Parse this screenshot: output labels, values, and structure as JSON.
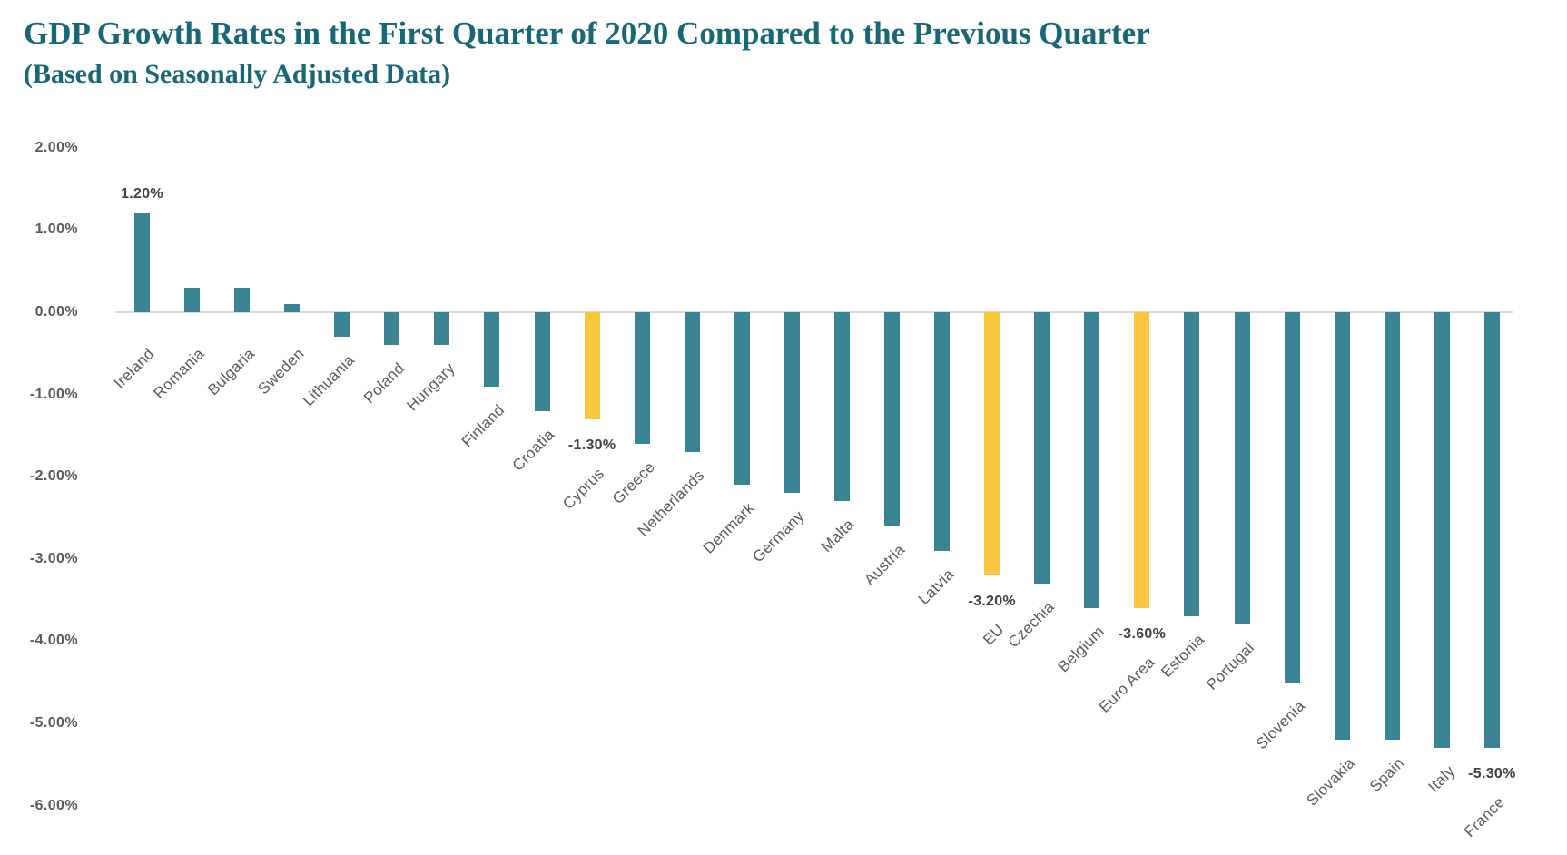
{
  "header": {
    "title": "GDP Growth Rates in the First Quarter of 2020 Compared to the Previous Quarter",
    "subtitle": "(Based on Seasonally Adjusted Data)"
  },
  "colors": {
    "bar_teal": "#3A8494",
    "bar_yellow": "#FBC63F",
    "title_teal": "#176775",
    "axis_label_gray": "#58595b",
    "category_label_gray": "#595a5c",
    "data_label_gray": "#414042",
    "zero_line_gray": "#dadada"
  },
  "chart_data": {
    "type": "bar",
    "title": "GDP Growth Rates in the First Quarter of 2020 Compared to the Previous Quarter",
    "subtitle": "(Based on Seasonally Adjusted Data)",
    "xlabel": "",
    "ylabel": "",
    "ylim": [
      -6.0,
      2.0
    ],
    "grid": false,
    "legend": "none",
    "y_ticks": [
      "2.00%",
      "1.00%",
      "0.00%",
      "-1.00%",
      "-2.00%",
      "-3.00%",
      "-4.00%",
      "-5.00%",
      "-6.00%"
    ],
    "highlight_note": "Cyprus, EU and Euro Area are drawn in yellow; all other bars teal",
    "series": [
      {
        "name": "Ireland",
        "value": 1.2,
        "label": "1.20%",
        "highlight": false
      },
      {
        "name": "Romania",
        "value": 0.3,
        "label": "",
        "highlight": false
      },
      {
        "name": "Bulgaria",
        "value": 0.3,
        "label": "",
        "highlight": false
      },
      {
        "name": "Sweden",
        "value": 0.1,
        "label": "",
        "highlight": false
      },
      {
        "name": "Lithuania",
        "value": -0.3,
        "label": "",
        "highlight": false
      },
      {
        "name": "Poland",
        "value": -0.4,
        "label": "",
        "highlight": false
      },
      {
        "name": "Hungary",
        "value": -0.4,
        "label": "",
        "highlight": false
      },
      {
        "name": "Finland",
        "value": -0.9,
        "label": "",
        "highlight": false
      },
      {
        "name": "Croatia",
        "value": -1.2,
        "label": "",
        "highlight": false
      },
      {
        "name": "Cyprus",
        "value": -1.3,
        "label": "-1.30%",
        "highlight": true
      },
      {
        "name": "Greece",
        "value": -1.6,
        "label": "",
        "highlight": false
      },
      {
        "name": "Netherlands",
        "value": -1.7,
        "label": "",
        "highlight": false
      },
      {
        "name": "Denmark",
        "value": -2.1,
        "label": "",
        "highlight": false
      },
      {
        "name": "Germany",
        "value": -2.2,
        "label": "",
        "highlight": false
      },
      {
        "name": "Malta",
        "value": -2.3,
        "label": "",
        "highlight": false
      },
      {
        "name": "Austria",
        "value": -2.6,
        "label": "",
        "highlight": false
      },
      {
        "name": "Latvia",
        "value": -2.9,
        "label": "",
        "highlight": false
      },
      {
        "name": "EU",
        "value": -3.2,
        "label": "-3.20%",
        "highlight": true
      },
      {
        "name": "Czechia",
        "value": -3.3,
        "label": "",
        "highlight": false
      },
      {
        "name": "Belgium",
        "value": -3.6,
        "label": "",
        "highlight": false
      },
      {
        "name": "Euro Area",
        "value": -3.6,
        "label": "-3.60%",
        "highlight": true
      },
      {
        "name": "Estonia",
        "value": -3.7,
        "label": "",
        "highlight": false
      },
      {
        "name": "Portugal",
        "value": -3.8,
        "label": "",
        "highlight": false
      },
      {
        "name": "Slovenia",
        "value": -4.5,
        "label": "",
        "highlight": false
      },
      {
        "name": "Slovakia",
        "value": -5.2,
        "label": "",
        "highlight": false
      },
      {
        "name": "Spain",
        "value": -5.2,
        "label": "",
        "highlight": false
      },
      {
        "name": "Italy",
        "value": -5.3,
        "label": "",
        "highlight": false
      },
      {
        "name": "France",
        "value": -5.3,
        "label": "-5.30%",
        "highlight": false
      }
    ]
  }
}
